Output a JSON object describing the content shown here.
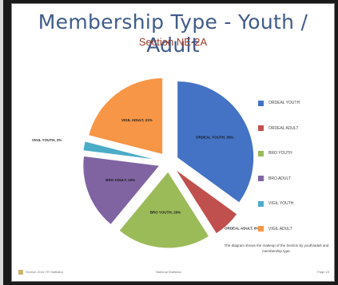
{
  "slide": {
    "title": "Membership Type - Youth / Adult",
    "subtitle": "Section NE-2A",
    "caption": "The diagram shows the makeup of the Section by youth/adult and membership type.",
    "footer_left": "Section 2016 YR Statistics",
    "footer_center": "National Statistics",
    "footer_right": "Page 15"
  },
  "chart_data": {
    "type": "pie",
    "title": "Membership Type - Youth / Adult",
    "subtitle": "Section NE-2A",
    "legend_position": "right",
    "slices": [
      {
        "name": "ORDEAL YOUTH",
        "value": 35,
        "label": "ORDEAL YOUTH, 35%",
        "color": "#4472c4"
      },
      {
        "name": "ORDEAL ADULT",
        "value": 6,
        "label": "ORDEAL ADULT, 6%",
        "color": "#c0504d"
      },
      {
        "name": "BRO YOUTH",
        "value": 20,
        "label": "BRO YOUTH, 20%",
        "color": "#9bbb59"
      },
      {
        "name": "BRO ADULT",
        "value": 16,
        "label": "BRO ADULT, 16%",
        "color": "#8064a2"
      },
      {
        "name": "VIGIL YOUTH",
        "value": 2,
        "label": "VIGIL YOUTH, 2%",
        "color": "#4bacc6"
      },
      {
        "name": "VIGIL ADULT",
        "value": 21,
        "label": "VIGIL ADULT, 21%",
        "color": "#f79646"
      }
    ]
  }
}
